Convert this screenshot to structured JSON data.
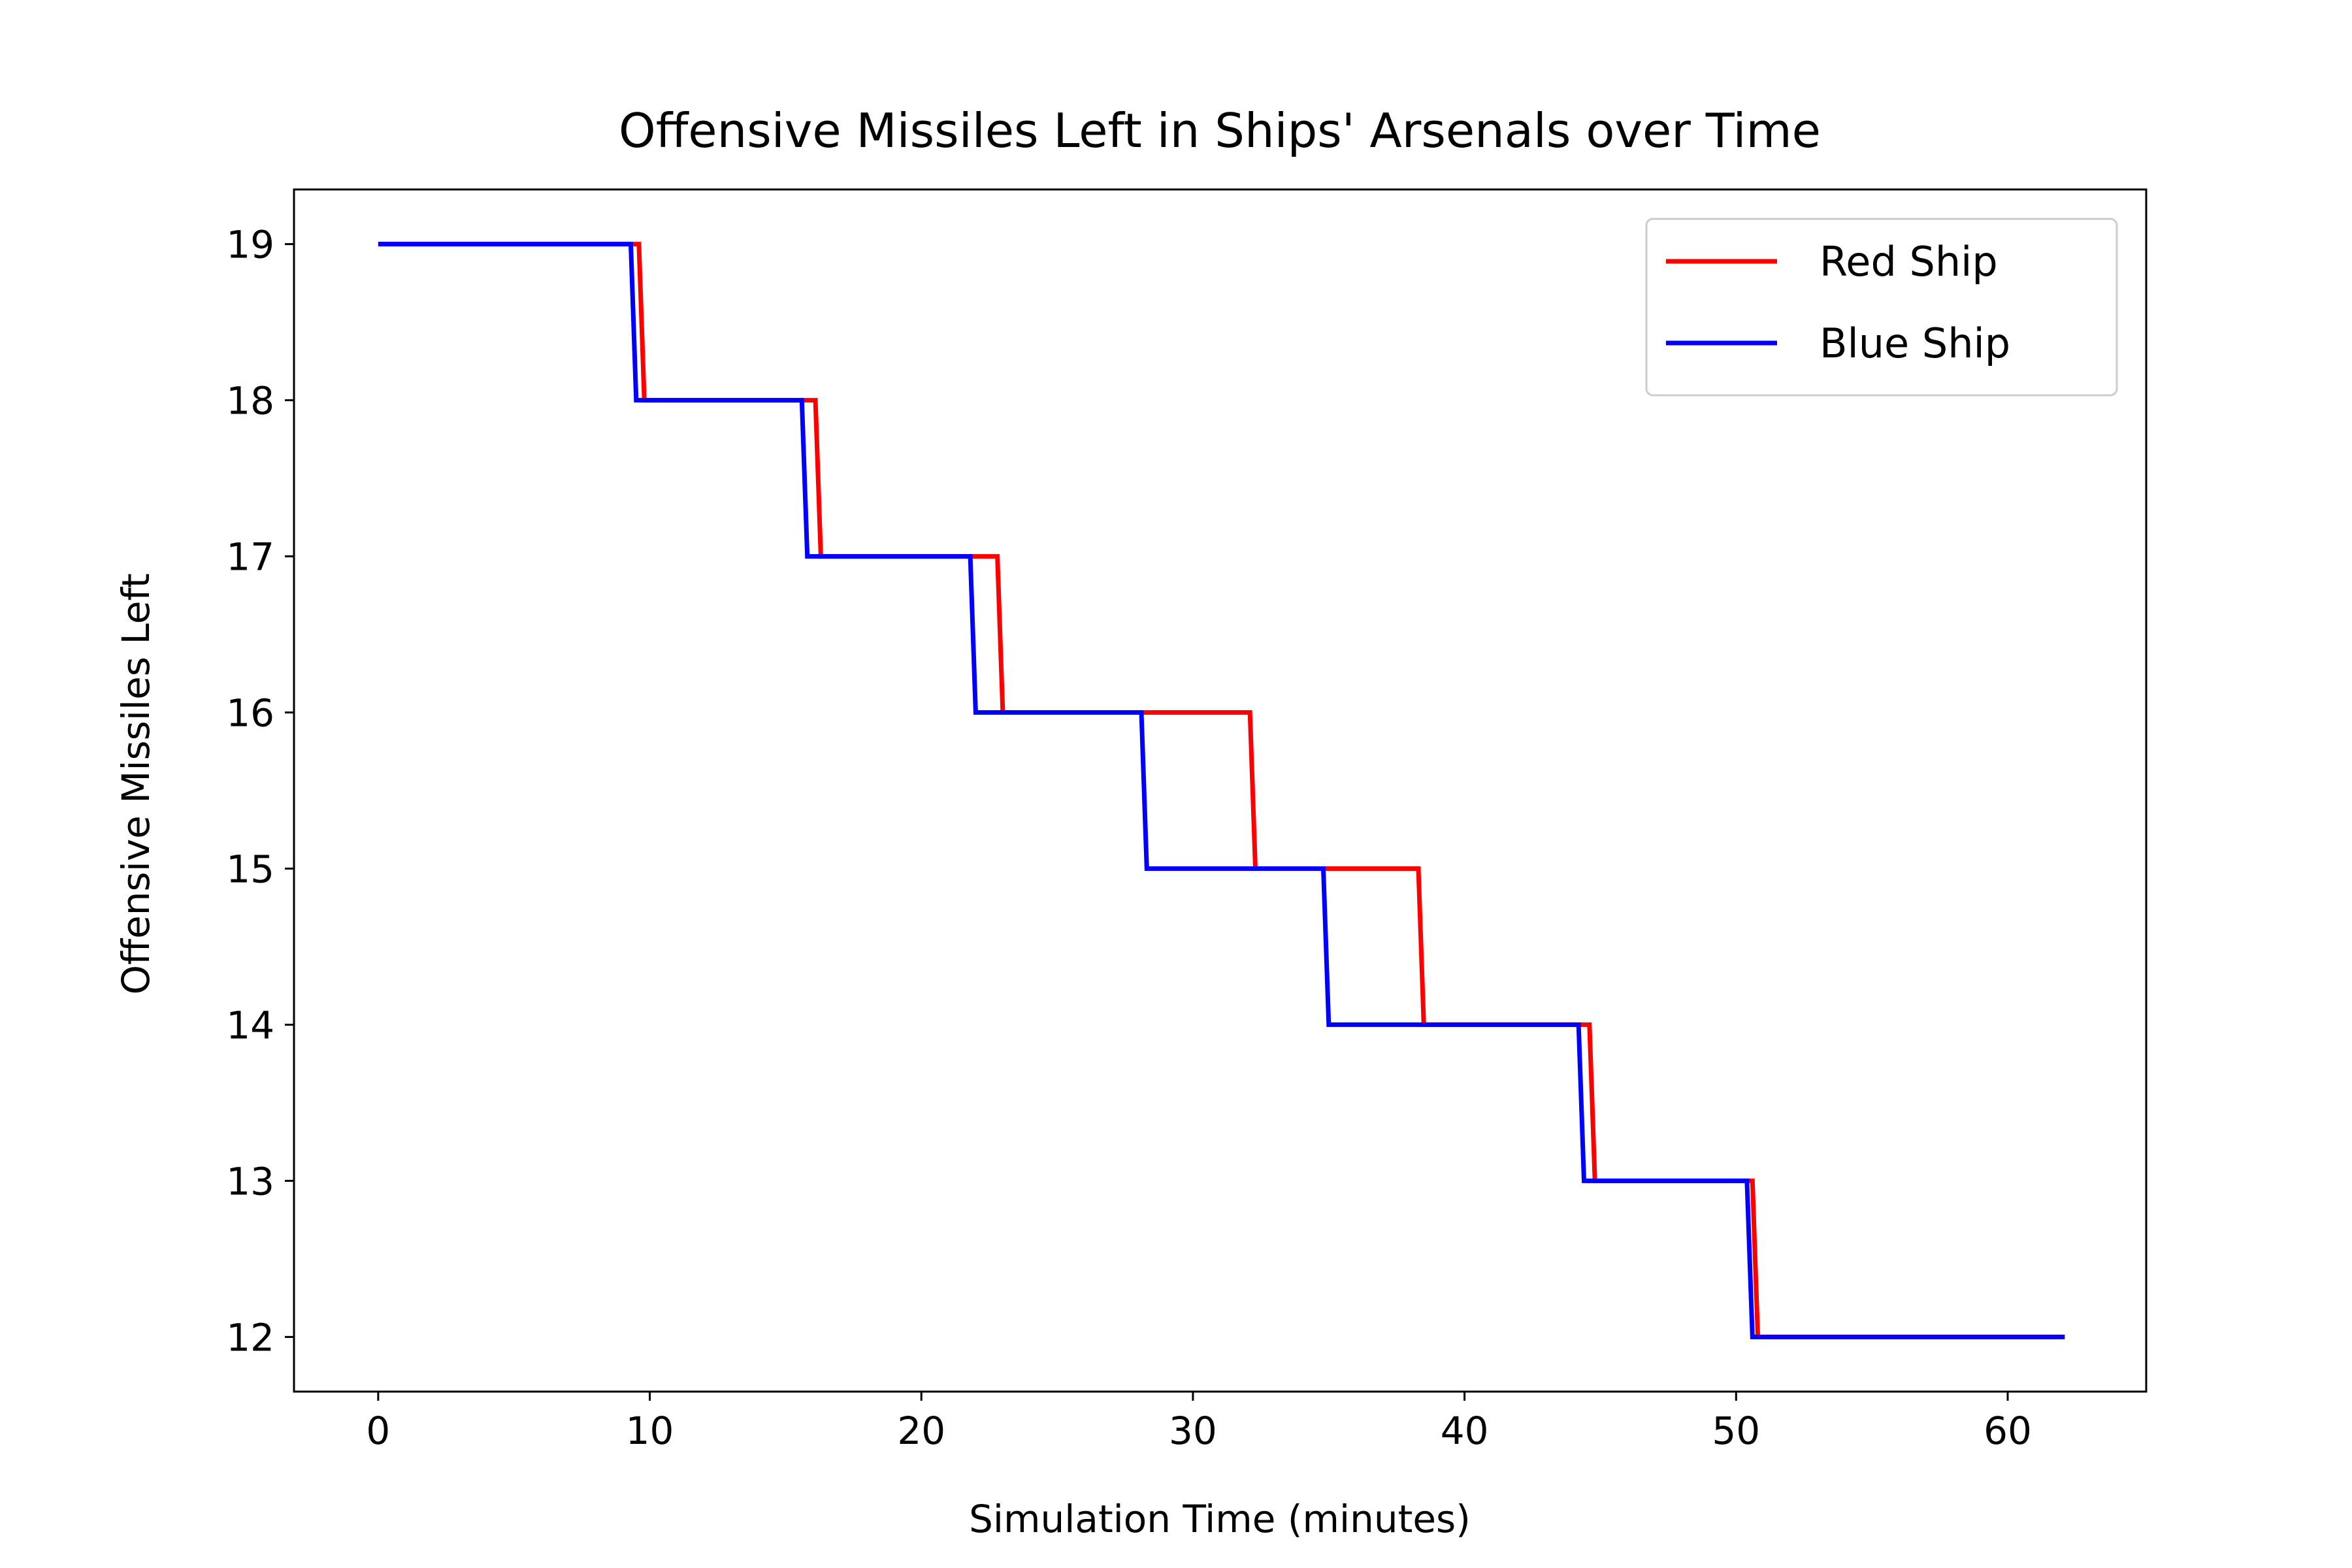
{
  "chart_data": {
    "type": "line",
    "title": "Offensive Missiles Left in Ships' Arsenals over Time",
    "xlabel": "Simulation Time (minutes)",
    "ylabel": "Offensive Missiles Left",
    "xlim": [
      -3.1,
      65.1
    ],
    "ylim": [
      11.65,
      19.35
    ],
    "xticks": [
      0,
      10,
      20,
      30,
      40,
      50,
      60
    ],
    "yticks": [
      12,
      13,
      14,
      15,
      16,
      17,
      18,
      19
    ],
    "grid": false,
    "legend_position": "top-right",
    "series": [
      {
        "name": "Red Ship",
        "color": "#ff0000",
        "x": [
          0,
          9.6,
          9.8,
          16.1,
          16.3,
          22.8,
          23.0,
          32.1,
          32.3,
          38.3,
          38.5,
          44.6,
          44.8,
          50.6,
          50.8,
          62.1
        ],
        "y": [
          19,
          19,
          18,
          18,
          17,
          17,
          16,
          16,
          15,
          15,
          14,
          14,
          13,
          13,
          12,
          12
        ]
      },
      {
        "name": "Blue Ship",
        "color": "#0000ff",
        "x": [
          0,
          9.3,
          9.5,
          15.6,
          15.8,
          21.8,
          22.0,
          28.1,
          28.3,
          34.8,
          35.0,
          44.2,
          44.4,
          50.4,
          50.6,
          62.1
        ],
        "y": [
          19,
          19,
          18,
          18,
          17,
          17,
          16,
          16,
          15,
          15,
          14,
          14,
          13,
          13,
          12,
          12
        ]
      }
    ]
  }
}
